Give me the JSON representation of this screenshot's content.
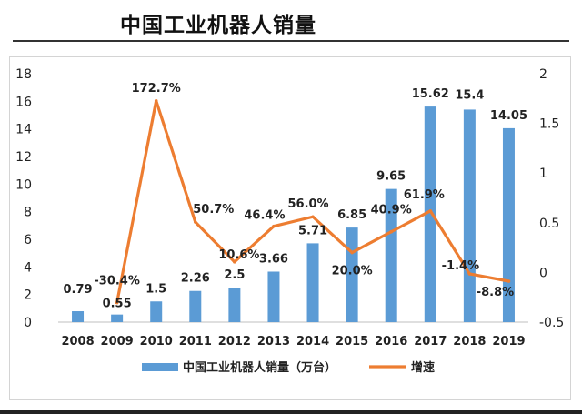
{
  "page": {
    "title": "中国工业机器人销量"
  },
  "chart_data": {
    "type": "bar",
    "title": "中国工业机器人销量",
    "categories": [
      "2008",
      "2009",
      "2010",
      "2011",
      "2012",
      "2013",
      "2014",
      "2015",
      "2016",
      "2017",
      "2018",
      "2019"
    ],
    "series": [
      {
        "name": "中国工业机器人销量（万台）",
        "type": "bar",
        "axis": "left",
        "color": "#5B9BD5",
        "values": [
          0.79,
          0.55,
          1.5,
          2.26,
          2.5,
          3.66,
          5.71,
          6.85,
          9.65,
          15.62,
          15.4,
          14.05
        ],
        "labels": [
          "0.79",
          "0.55",
          "1.5",
          "2.26",
          "2.5",
          "3.66",
          "5.71",
          "6.85",
          "9.65",
          "15.62",
          "15.4",
          "14.05"
        ]
      },
      {
        "name": "增速",
        "type": "line",
        "axis": "right",
        "color": "#ED7D31",
        "values": [
          null,
          -0.304,
          1.727,
          0.507,
          0.106,
          0.464,
          0.56,
          0.2,
          0.409,
          0.619,
          -0.014,
          -0.088
        ],
        "labels": [
          "",
          "-30.4%",
          "172.7%",
          "50.7%",
          "10.6%",
          "46.4%",
          "56.0%",
          "20.0%",
          "40.9%",
          "61.9%",
          "-1.4%",
          "-8.8%"
        ]
      }
    ],
    "y_left": {
      "min": 0,
      "max": 18,
      "step": 2,
      "ticks": [
        "0",
        "2",
        "4",
        "6",
        "8",
        "10",
        "12",
        "14",
        "16",
        "18"
      ]
    },
    "y_right": {
      "min": -0.5,
      "max": 2,
      "ticks": [
        {
          "value": -0.5,
          "label": "-0.5"
        },
        {
          "value": 0,
          "label": "0"
        },
        {
          "value": 0.5,
          "label": "0.5"
        },
        {
          "value": 1,
          "label": "1"
        },
        {
          "value": 1.5,
          "label": "1.5"
        },
        {
          "value": 2,
          "label": "2"
        }
      ]
    },
    "grid": false,
    "legend": {
      "position": "bottom"
    }
  }
}
